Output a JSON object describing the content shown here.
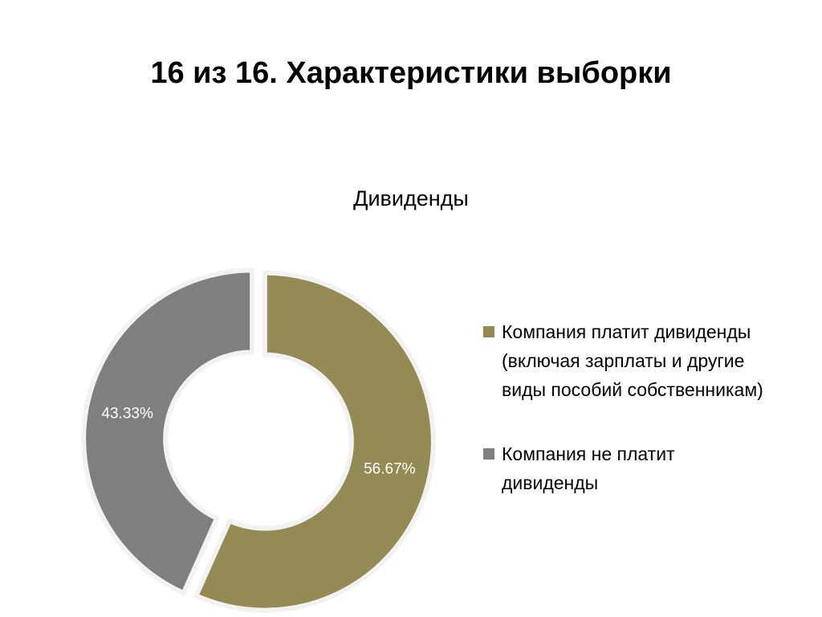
{
  "slide": {
    "title": "16 из 16. Характеристики выборки"
  },
  "chart_data": {
    "type": "pie",
    "variant": "doughnut",
    "title": "Дивиденды",
    "series": [
      {
        "name": "Компания платит дивиденды (включая зарплаты и другие виды пособий собственникам)",
        "value": 56.67,
        "label": "56.67%",
        "color": "#948a54"
      },
      {
        "name": "Компания не платит дивиденды",
        "value": 43.33,
        "label": "43.33%",
        "color": "#7f7f7f"
      }
    ],
    "legend_position": "right",
    "exploded": true
  }
}
